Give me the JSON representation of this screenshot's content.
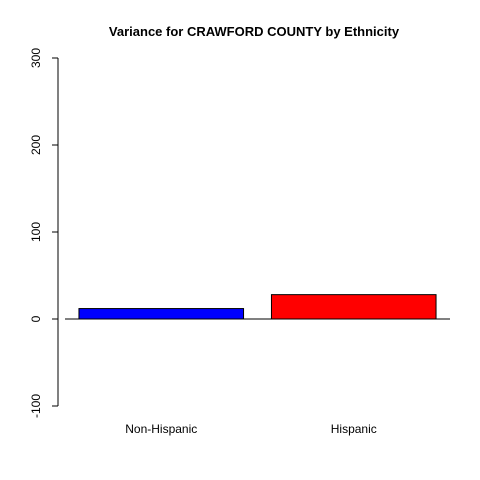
{
  "chart_data": {
    "type": "bar",
    "title": "Variance for CRAWFORD COUNTY by Ethnicity",
    "xlabel": "",
    "ylabel": "",
    "categories": [
      "Non-Hispanic",
      "Hispanic"
    ],
    "values": [
      12,
      28
    ],
    "colors": [
      "#0000ff",
      "#ff0000"
    ],
    "ylim": [
      -100,
      300
    ],
    "yticks": [
      -100,
      0,
      100,
      200,
      300
    ],
    "grid": false,
    "legend": "none"
  }
}
